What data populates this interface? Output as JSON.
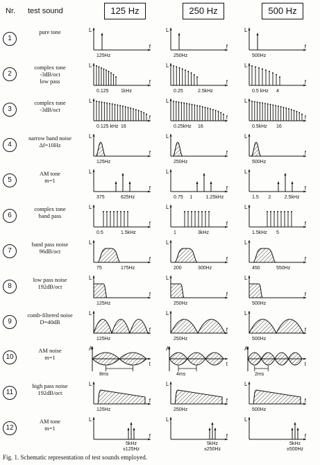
{
  "header": {
    "nr_label": "Nr.",
    "test_sound_label": "test sound",
    "frequencies": [
      "125 Hz",
      "250 Hz",
      "500 Hz"
    ]
  },
  "axis_labels": {
    "y_level": "L",
    "y_amp": "A",
    "x": "f",
    "x_time": "t"
  },
  "rows": [
    {
      "num": "1",
      "label": [
        "pure tone"
      ],
      "ticks": [
        [
          "125Hz"
        ],
        [
          "250Hz"
        ],
        [
          "500Hz"
        ]
      ]
    },
    {
      "num": "2",
      "label": [
        "complex tone",
        "-3dB/oct",
        "low pass"
      ],
      "ticks": [
        [
          "0.125",
          "1kHz"
        ],
        [
          "0.25",
          "2.5kHz"
        ],
        [
          "0.5 kHz",
          "4"
        ]
      ]
    },
    {
      "num": "3",
      "label": [
        "complex tone",
        "-3dB/oct"
      ],
      "ticks": [
        [
          "0.125 kHz",
          "16"
        ],
        [
          "0.25kHz",
          "16"
        ],
        [
          "0.5kHz",
          "16"
        ]
      ]
    },
    {
      "num": "4",
      "label": [
        "narrow band noise",
        "Δf=10Hz"
      ],
      "ticks": [
        [
          "125Hz"
        ],
        [
          "250Hz"
        ],
        [
          "500Hz"
        ]
      ]
    },
    {
      "num": "5",
      "label": [
        "AM tone",
        "m=1"
      ],
      "ticks": [
        [
          "375",
          "625Hz"
        ],
        [
          "0.75",
          "1",
          "1.25kHz"
        ],
        [
          "1.5",
          "2",
          "2.5kHz"
        ]
      ]
    },
    {
      "num": "6",
      "label": [
        "complex tone",
        "band pass"
      ],
      "ticks": [
        [
          "0.5",
          "1.5kHz"
        ],
        [
          "1",
          "3kHz"
        ],
        [
          "1.5kHz",
          "5"
        ]
      ]
    },
    {
      "num": "7",
      "label": [
        "band pass noise",
        "96dB/oct"
      ],
      "ticks": [
        [
          "75",
          "175Hz"
        ],
        [
          "200",
          "300Hz"
        ],
        [
          "450",
          "550Hz"
        ]
      ]
    },
    {
      "num": "8",
      "label": [
        "low pass noise",
        "192dB/oct"
      ],
      "ticks": [
        [
          "125Hz"
        ],
        [
          "250Hz"
        ],
        [
          "500Hz"
        ]
      ]
    },
    {
      "num": "9",
      "label": [
        "comb-filtered noise",
        "D=40dB"
      ],
      "ticks": [
        [
          "125Hz"
        ],
        [
          "250Hz"
        ],
        [
          "500Hz"
        ]
      ]
    },
    {
      "num": "10",
      "label": [
        "AM noise",
        "m=1"
      ],
      "ticks": [
        [
          "8ms"
        ],
        [
          "4ms"
        ],
        [
          "2ms"
        ]
      ]
    },
    {
      "num": "11",
      "label": [
        "high pass noise",
        "192dB/oct"
      ],
      "ticks": [
        [
          "125Hz"
        ],
        [
          "250Hz"
        ],
        [
          "500Hz"
        ]
      ]
    },
    {
      "num": "12",
      "label": [
        "AM tone",
        "m=1"
      ],
      "ticks": [
        [
          "5kHz",
          "±125Hz"
        ],
        [
          "5kHz",
          "±250Hz"
        ],
        [
          "5kHz",
          "±500Hz"
        ]
      ]
    }
  ],
  "caption": "Fig. 1. Schematic representation of test sounds employed."
}
